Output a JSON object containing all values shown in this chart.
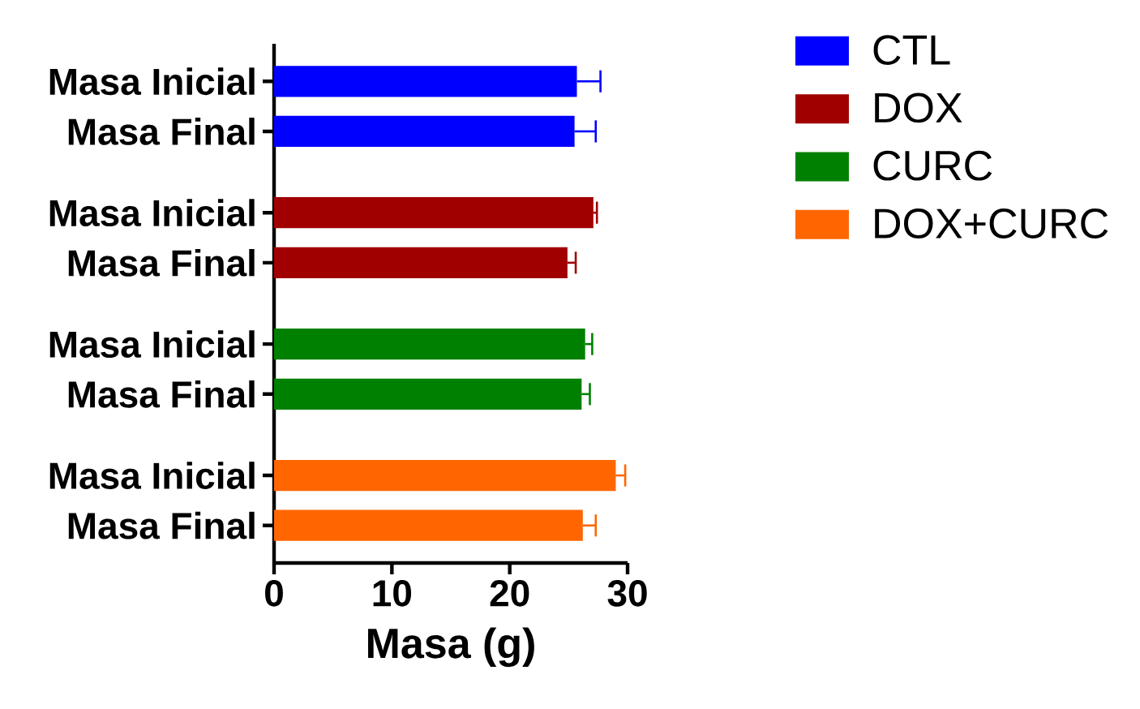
{
  "chart_data": {
    "type": "bar",
    "orientation": "horizontal",
    "categories": [
      "Masa Inicial",
      "Masa Final",
      "Masa Inicial",
      "Masa Final",
      "Masa Inicial",
      "Masa Final",
      "Masa Inicial",
      "Masa Final"
    ],
    "xlabel": "Masa (g)",
    "xlim": [
      0,
      30
    ],
    "xticks": [
      0,
      10,
      20,
      30
    ],
    "legend": "top right",
    "series": [
      {
        "name": "CTL",
        "color": "#0000ff",
        "values": [
          25.7,
          25.5,
          null,
          null,
          null,
          null,
          null,
          null
        ],
        "errors": [
          [
            25.7,
            27.7
          ],
          [
            25.5,
            27.3
          ],
          null,
          null,
          null,
          null,
          null,
          null
        ]
      },
      {
        "name": "DOX",
        "color": "#a00000",
        "values": [
          null,
          null,
          27.1,
          24.9,
          null,
          null,
          null,
          null
        ],
        "errors": [
          null,
          null,
          [
            27.1,
            27.4
          ],
          [
            24.9,
            25.6
          ],
          null,
          null,
          null,
          null
        ]
      },
      {
        "name": "CURC",
        "color": "#008000",
        "values": [
          null,
          null,
          null,
          null,
          26.4,
          26.1,
          null,
          null
        ],
        "errors": [
          null,
          null,
          null,
          null,
          [
            26.4,
            27.0
          ],
          [
            26.1,
            26.8
          ],
          null,
          null
        ]
      },
      {
        "name": "DOX+CURC",
        "color": "#ff6600",
        "values": [
          null,
          null,
          null,
          null,
          null,
          null,
          29.0,
          26.2
        ],
        "errors": [
          null,
          null,
          null,
          null,
          null,
          null,
          [
            29.0,
            29.8
          ],
          [
            26.2,
            27.3
          ]
        ]
      }
    ]
  }
}
